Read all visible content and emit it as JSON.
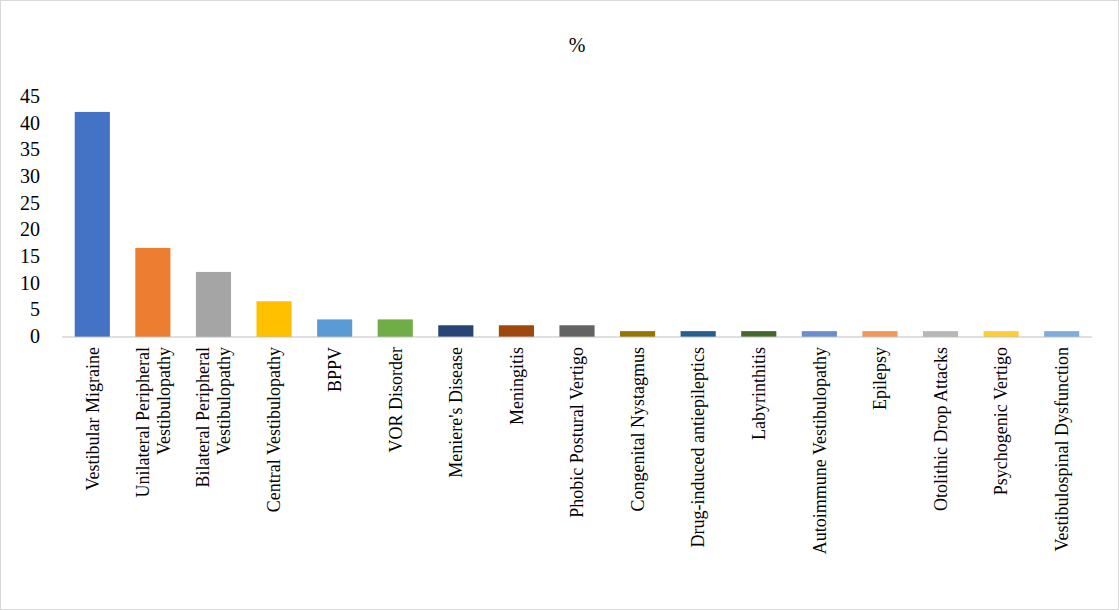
{
  "chart_data": {
    "type": "bar",
    "title": "%",
    "categories": [
      "Vestibular Migraine",
      "Unilateral Peripheral Vestibulopathy",
      "Bilateral Peripheral Vestibulopathy",
      "Central Vestibulopathy",
      "BPPV",
      "VOR Disorder",
      "Meniere's Disease",
      "Meningitis",
      "Phobic Postural Vertigo",
      "Congenital Nystagmus",
      "Drug-induced antiepileptics",
      "Labyrinthitis",
      "Autoimmune Vestibulopathy",
      "Epilepsy",
      "Otolithic Drop Attacks",
      "Psychogenic Vertigo",
      "Vestibulospinal Dysfunction"
    ],
    "values": [
      42.2,
      16.7,
      12.2,
      6.7,
      3.3,
      3.3,
      2.2,
      2.2,
      2.2,
      1.1,
      1.1,
      1.1,
      1.1,
      1.1,
      1.1,
      1.1,
      1.1
    ],
    "colors": [
      "#4472c4",
      "#ed7d31",
      "#a5a5a5",
      "#ffc000",
      "#5b9bd5",
      "#70ad47",
      "#264478",
      "#9e480e",
      "#636363",
      "#997300",
      "#255e91",
      "#43682b",
      "#698ed0",
      "#f1975a",
      "#b7b7b7",
      "#ffcd33",
      "#7cafdd"
    ],
    "ylim": [
      0,
      45
    ],
    "yticks": [
      0,
      5,
      10,
      15,
      20,
      25,
      30,
      35,
      40,
      45
    ],
    "grid": false
  }
}
